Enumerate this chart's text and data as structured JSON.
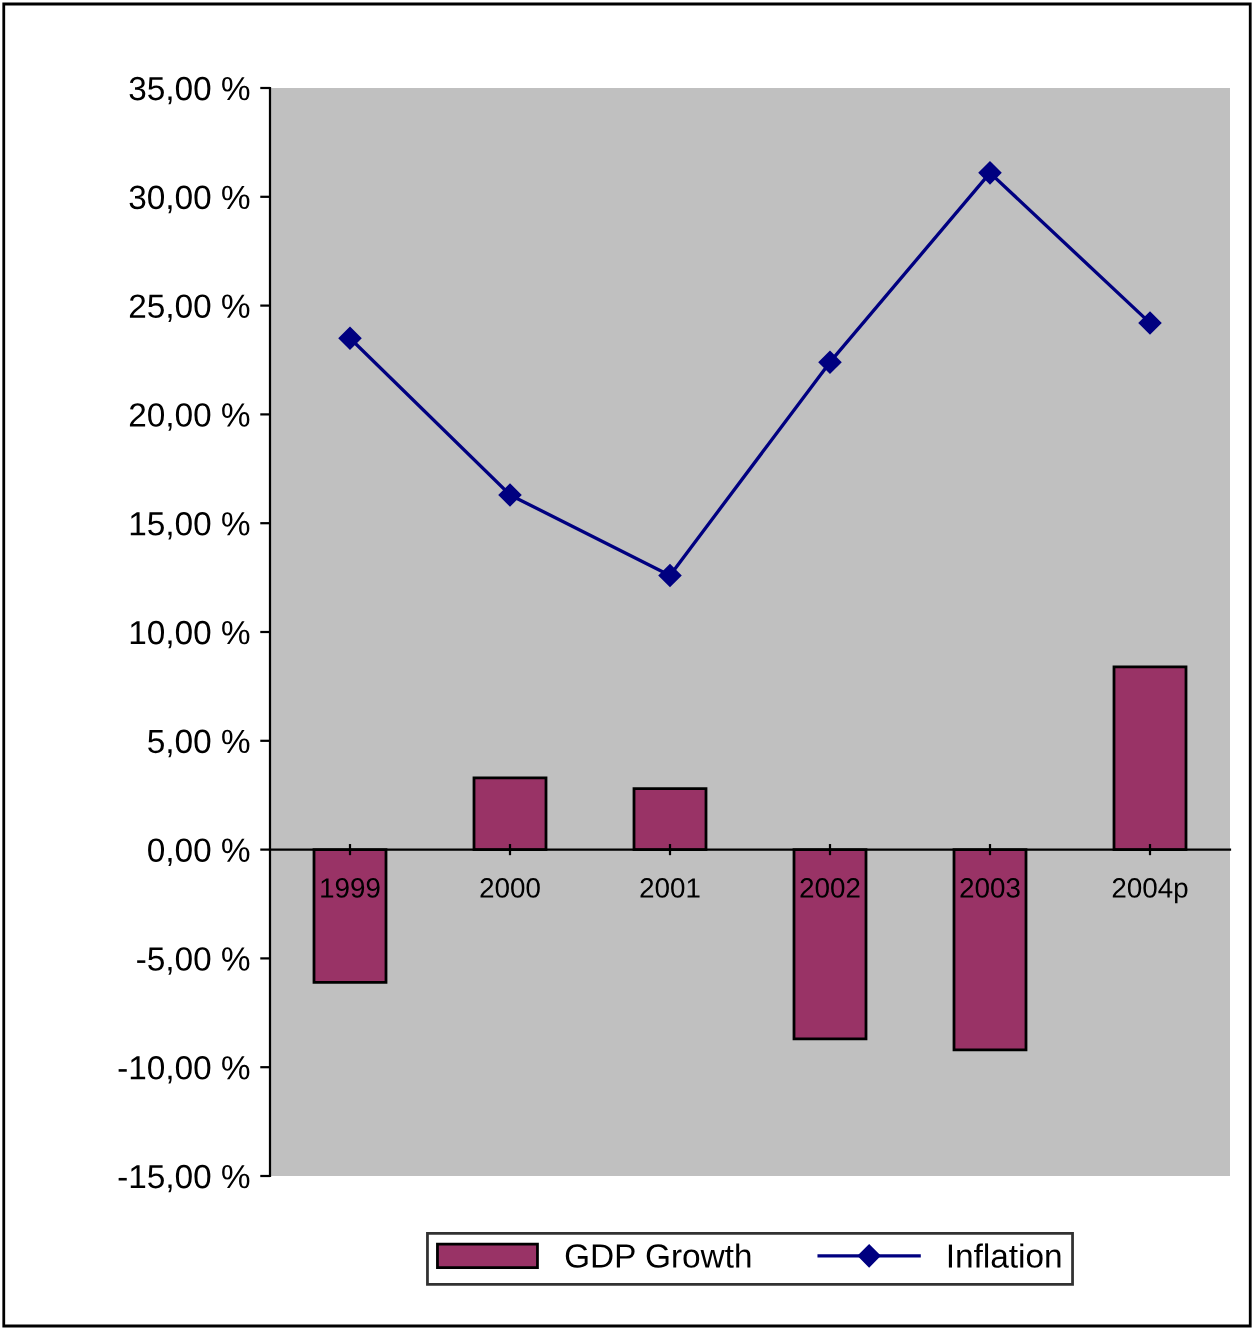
{
  "chart_data": {
    "type": "bar",
    "categories": [
      "1999",
      "2000",
      "2001",
      "2002",
      "2003",
      "2004p"
    ],
    "series": [
      {
        "name": "GDP Growth",
        "color": "#993366",
        "values": [
          -6.1,
          3.3,
          2.8,
          -8.7,
          -9.2,
          8.4
        ]
      },
      {
        "name": "Inflation",
        "type": "line",
        "color": "#000080",
        "marker": "diamond",
        "values": [
          23.5,
          16.3,
          12.6,
          22.4,
          31.1,
          24.2
        ]
      }
    ],
    "ylim": [
      -15,
      35
    ],
    "yticks": [
      {
        "value": -15,
        "label": "-15,00 %"
      },
      {
        "value": -10,
        "label": "-10,00 %"
      },
      {
        "value": -5,
        "label": "-5,00 %"
      },
      {
        "value": 0,
        "label": "0,00 %"
      },
      {
        "value": 5,
        "label": "5,00 %"
      },
      {
        "value": 10,
        "label": "10,00 %"
      },
      {
        "value": 15,
        "label": "15,00 %"
      },
      {
        "value": 20,
        "label": "20,00 %"
      },
      {
        "value": 25,
        "label": "25,00 %"
      },
      {
        "value": 30,
        "label": "30,00 %"
      },
      {
        "value": 35,
        "label": "35,00 %"
      }
    ],
    "grid": false,
    "legend": "bottom"
  }
}
